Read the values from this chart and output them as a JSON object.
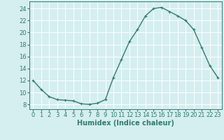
{
  "x": [
    0,
    1,
    2,
    3,
    4,
    5,
    6,
    7,
    8,
    9,
    10,
    11,
    12,
    13,
    14,
    15,
    16,
    17,
    18,
    19,
    20,
    21,
    22,
    23
  ],
  "y": [
    12,
    10.5,
    9.3,
    8.8,
    8.7,
    8.6,
    8.1,
    8.0,
    8.2,
    8.8,
    12.5,
    15.5,
    18.5,
    20.5,
    22.8,
    24.0,
    24.2,
    23.5,
    22.8,
    22.0,
    20.5,
    17.5,
    14.5,
    12.5
  ],
  "xlim": [
    -0.5,
    23.5
  ],
  "ylim": [
    7.2,
    25.2
  ],
  "yticks": [
    8,
    10,
    12,
    14,
    16,
    18,
    20,
    22,
    24
  ],
  "xticks": [
    0,
    1,
    2,
    3,
    4,
    5,
    6,
    7,
    8,
    9,
    10,
    11,
    12,
    13,
    14,
    15,
    16,
    17,
    18,
    19,
    20,
    21,
    22,
    23
  ],
  "xlabel": "Humidex (Indice chaleur)",
  "line_color": "#2e7d6e",
  "marker": "+",
  "marker_size": 3,
  "bg_color": "#d5eef0",
  "grid_color": "#ffffff",
  "label_color": "#2e7d6e",
  "axis_label_fontsize": 7,
  "tick_fontsize": 6,
  "line_width": 1.0
}
